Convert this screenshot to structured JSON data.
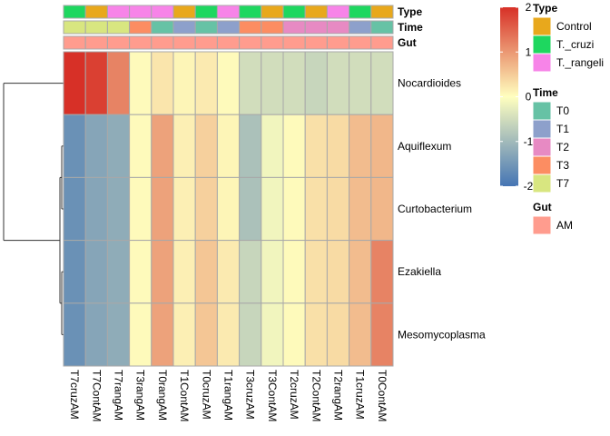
{
  "chart_data": {
    "type": "heatmap",
    "columns": [
      "T7cruzAM",
      "T7ContAM",
      "T7rangAM",
      "T3rangAM",
      "T0rangAM",
      "T1ContAM",
      "T0cruzAM",
      "T1rangAM",
      "T3cruzAM",
      "T3ContAM",
      "T2cruzAM",
      "T2ContAM",
      "T2rangAM",
      "T1cruzAM",
      "T0ContAM"
    ],
    "rows": [
      "Nocardioides",
      "Aquiflexum",
      "Curtobacterium",
      "Ezakiella",
      "Mesomycoplasma"
    ],
    "values": [
      [
        2.0,
        1.85,
        1.2,
        0.05,
        0.25,
        0.1,
        0.2,
        0.05,
        -0.5,
        -0.5,
        -0.5,
        -0.6,
        -0.5,
        -0.5,
        -0.5
      ],
      [
        -1.6,
        -1.3,
        -1.2,
        0.05,
        0.9,
        0.15,
        0.45,
        0.1,
        -0.9,
        -0.15,
        0.05,
        0.3,
        0.35,
        0.65,
        0.7
      ],
      [
        -1.6,
        -1.3,
        -1.2,
        0.05,
        0.9,
        0.15,
        0.45,
        0.1,
        -0.9,
        -0.15,
        0.05,
        0.3,
        0.35,
        0.65,
        0.7
      ],
      [
        -1.6,
        -1.3,
        -1.2,
        0.05,
        0.9,
        0.15,
        0.55,
        0.2,
        -0.6,
        -0.15,
        0.05,
        0.3,
        0.35,
        0.65,
        1.2
      ],
      [
        -1.6,
        -1.3,
        -1.2,
        0.05,
        0.9,
        0.15,
        0.55,
        0.2,
        -0.6,
        -0.15,
        0.05,
        0.3,
        0.35,
        0.65,
        1.2
      ]
    ],
    "annotations": {
      "Type": [
        "T._cruzi",
        "Control",
        "T._rangeli",
        "T._rangeli",
        "T._rangeli",
        "Control",
        "T._cruzi",
        "T._rangeli",
        "T._cruzi",
        "Control",
        "T._cruzi",
        "Control",
        "T._rangeli",
        "T._cruzi",
        "Control"
      ],
      "Time": [
        "T7",
        "T7",
        "T7",
        "T3",
        "T0",
        "T1",
        "T0",
        "T1",
        "T3",
        "T3",
        "T2",
        "T2",
        "T2",
        "T1",
        "T0"
      ],
      "Gut": [
        "AM",
        "AM",
        "AM",
        "AM",
        "AM",
        "AM",
        "AM",
        "AM",
        "AM",
        "AM",
        "AM",
        "AM",
        "AM",
        "AM",
        "AM"
      ]
    },
    "annotation_names": [
      "Type",
      "Time",
      "Gut"
    ],
    "colorbar": {
      "ticks": [
        2,
        1,
        0,
        -1,
        -2
      ],
      "range": [
        -2,
        2
      ]
    },
    "legends": [
      {
        "title": "Type",
        "items": [
          {
            "label": "Control",
            "color": "#E8A81C"
          },
          {
            "label": "T._cruzi",
            "color": "#1ED75F"
          },
          {
            "label": "T._rangeli",
            "color": "#F784E8"
          }
        ]
      },
      {
        "title": "Time",
        "items": [
          {
            "label": "T0",
            "color": "#66C2A5"
          },
          {
            "label": "T1",
            "color": "#8DA0CB"
          },
          {
            "label": "T2",
            "color": "#E78AC3"
          },
          {
            "label": "T3",
            "color": "#FC8D62"
          },
          {
            "label": "T7",
            "color": "#D8E680"
          }
        ]
      },
      {
        "title": "Gut",
        "items": [
          {
            "label": "AM",
            "color": "#FF9C8E"
          }
        ]
      }
    ],
    "colors": {
      "low": "#4575B4",
      "mid": "#FFFFBF",
      "high": "#D73027",
      "cell_border": "#A8A8A8",
      "tree": "#333333"
    }
  }
}
